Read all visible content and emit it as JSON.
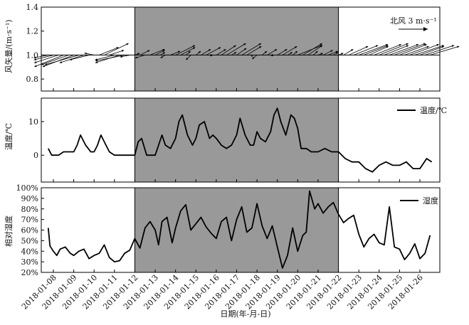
{
  "x_axis": {
    "label": "日期(年-月-日)",
    "ticks": [
      "2018-01-08",
      "2018-01-09",
      "2018-01-10",
      "2018-01-11",
      "2018-01-12",
      "2018-01-13",
      "2018-01-14",
      "2018-01-15",
      "2018-01-16",
      "2018-01-17",
      "2018-01-18",
      "2018-01-19",
      "2018-01-20",
      "2018-01-21",
      "2018-01-22",
      "2018-01-23",
      "2018-01-24",
      "2018-01-25",
      "2018-01-26"
    ]
  },
  "shade": {
    "start": "2018-01-12",
    "end": "2018-01-22",
    "color": "#999999"
  },
  "chart_data": [
    {
      "type": "line",
      "panel": "wind",
      "ylabel": "风矢量/(m·s⁻¹)",
      "ylim": [
        0.7,
        1.4
      ],
      "yticks": [
        0.8,
        1.0,
        1.2,
        1.4
      ],
      "ytick_labels": [
        "0.8",
        "1.0",
        "1.2",
        "1.4"
      ],
      "baseline": 1.0,
      "reference_arrow": {
        "label": "北风 3 m·s⁻¹",
        "speed": 3,
        "direction": "north"
      },
      "series": [
        {
          "x": [
            "2018-01-07 18:00",
            "2018-01-08 00:00",
            "2018-01-08 06:00",
            "2018-01-08 12:00",
            "2018-01-08 18:00",
            "2018-01-09 00:00",
            "2018-01-09 06:00",
            "2018-01-09 12:00",
            "2018-01-09 18:00",
            "2018-01-10 00:00",
            "2018-01-10 06:00",
            "2018-01-10 12:00",
            "2018-01-10 18:00",
            "2018-01-11 00:00",
            "2018-01-11 06:00",
            "2018-01-11 12:00",
            "2018-01-11 18:00",
            "2018-01-12 00:00",
            "2018-01-12 06:00",
            "2018-01-12 12:00",
            "2018-01-12 18:00",
            "2018-01-13 00:00",
            "2018-01-13 06:00",
            "2018-01-13 12:00",
            "2018-01-13 18:00",
            "2018-01-14 00:00",
            "2018-01-14 06:00",
            "2018-01-14 12:00",
            "2018-01-14 18:00",
            "2018-01-15 00:00",
            "2018-01-15 06:00",
            "2018-01-15 12:00",
            "2018-01-15 18:00",
            "2018-01-16 00:00",
            "2018-01-16 06:00",
            "2018-01-16 12:00",
            "2018-01-16 18:00",
            "2018-01-17 00:00",
            "2018-01-17 06:00",
            "2018-01-17 12:00",
            "2018-01-17 18:00",
            "2018-01-18 00:00",
            "2018-01-18 06:00",
            "2018-01-18 12:00",
            "2018-01-18 18:00",
            "2018-01-19 00:00",
            "2018-01-19 06:00",
            "2018-01-19 12:00",
            "2018-01-19 18:00",
            "2018-01-20 00:00",
            "2018-01-20 06:00",
            "2018-01-20 12:00",
            "2018-01-20 18:00",
            "2018-01-21 00:00",
            "2018-01-21 06:00",
            "2018-01-21 12:00",
            "2018-01-21 18:00",
            "2018-01-22 00:00",
            "2018-01-22 06:00",
            "2018-01-22 12:00",
            "2018-01-22 18:00",
            "2018-01-23 00:00",
            "2018-01-23 06:00",
            "2018-01-23 12:00",
            "2018-01-23 18:00",
            "2018-01-24 00:00",
            "2018-01-24 06:00",
            "2018-01-24 12:00",
            "2018-01-24 18:00",
            "2018-01-25 00:00",
            "2018-01-25 06:00",
            "2018-01-25 12:00",
            "2018-01-25 18:00",
            "2018-01-26 00:00",
            "2018-01-26 06:00",
            "2018-01-26 12:00"
          ],
          "u": [
            -1.5,
            -2.0,
            -2.5,
            -3.0,
            -2.8,
            -3.2,
            -3.5,
            -2.5,
            -2.0,
            -1.0,
            2.0,
            2.5,
            1.5,
            -2.0,
            -2.5,
            -3.0,
            -1.0,
            0.5,
            1.0,
            -1.0,
            1.5,
            1.0,
            0.5,
            -0.5,
            1.0,
            2.0,
            1.5,
            0.5,
            -0.5,
            0.5,
            1.0,
            1.5,
            0.0,
            1.0,
            1.5,
            2.0,
            0.5,
            1.0,
            2.0,
            1.5,
            0.0,
            -0.5,
            0.5,
            1.0,
            0.0,
            1.0,
            1.5,
            0.5,
            0.5,
            2.5,
            2.0,
            1.5,
            0.5,
            0.5,
            1.0,
            1.0,
            0.5,
            0.5,
            1.0,
            2.0,
            2.5,
            3.0,
            2.5,
            2.0,
            2.8,
            3.0,
            2.5,
            3.0,
            3.2,
            2.8,
            2.5,
            3.0,
            3.0,
            2.5,
            3.0,
            3.0
          ],
          "v": [
            -0.3,
            -0.5,
            -0.8,
            -1.2,
            -1.0,
            -1.2,
            -1.0,
            -0.8,
            -0.5,
            0.2,
            0.8,
            1.2,
            0.5,
            -0.5,
            -0.8,
            -0.6,
            -0.2,
            0.2,
            0.5,
            -0.3,
            0.6,
            0.5,
            0.3,
            -0.3,
            0.4,
            1.0,
            0.8,
            0.4,
            -0.5,
            0.4,
            0.6,
            0.8,
            0.1,
            0.6,
            1.0,
            1.2,
            0.3,
            0.7,
            1.2,
            0.9,
            -0.2,
            -0.4,
            0.4,
            0.6,
            0.1,
            0.6,
            0.9,
            0.3,
            0.4,
            1.0,
            1.2,
            1.0,
            0.4,
            0.2,
            0.5,
            0.4,
            0.3,
            0.2,
            0.6,
            0.9,
            1.0,
            1.1,
            1.0,
            0.9,
            1.1,
            1.2,
            1.0,
            1.1,
            1.2,
            1.1,
            0.9,
            1.1,
            1.0,
            0.9,
            1.0,
            0.9
          ]
        }
      ]
    },
    {
      "type": "line",
      "panel": "temperature",
      "ylabel": "温度/℃",
      "ylim": [
        -8,
        17
      ],
      "yticks": [
        0,
        10
      ],
      "ytick_labels": [
        "0",
        "10"
      ],
      "legend_position": "top-right",
      "series": [
        {
          "name": "温度/℃",
          "x": [
            "2018-01-07 18:00",
            "2018-01-07 22:00",
            "2018-01-08 00:00",
            "2018-01-08 06:00",
            "2018-01-08 12:00",
            "2018-01-08 18:00",
            "2018-01-09 00:00",
            "2018-01-09 04:00",
            "2018-01-09 08:00",
            "2018-01-09 14:00",
            "2018-01-09 20:00",
            "2018-01-10 00:00",
            "2018-01-10 04:00",
            "2018-01-10 08:00",
            "2018-01-10 14:00",
            "2018-01-10 18:00",
            "2018-01-11 00:00",
            "2018-01-11 12:00",
            "2018-01-11 18:00",
            "2018-01-12 00:00",
            "2018-01-12 04:00",
            "2018-01-12 08:00",
            "2018-01-12 14:00",
            "2018-01-12 18:00",
            "2018-01-13 00:00",
            "2018-01-13 04:00",
            "2018-01-13 08:00",
            "2018-01-13 12:00",
            "2018-01-13 18:00",
            "2018-01-14 00:00",
            "2018-01-14 04:00",
            "2018-01-14 08:00",
            "2018-01-14 14:00",
            "2018-01-14 20:00",
            "2018-01-15 00:00",
            "2018-01-15 04:00",
            "2018-01-15 10:00",
            "2018-01-15 16:00",
            "2018-01-15 20:00",
            "2018-01-16 00:00",
            "2018-01-16 06:00",
            "2018-01-16 12:00",
            "2018-01-16 18:00",
            "2018-01-17 00:00",
            "2018-01-17 04:00",
            "2018-01-17 10:00",
            "2018-01-17 16:00",
            "2018-01-17 20:00",
            "2018-01-18 00:00",
            "2018-01-18 04:00",
            "2018-01-18 10:00",
            "2018-01-18 16:00",
            "2018-01-18 20:00",
            "2018-01-19 00:00",
            "2018-01-19 04:00",
            "2018-01-19 10:00",
            "2018-01-19 16:00",
            "2018-01-19 20:00",
            "2018-01-20 00:00",
            "2018-01-20 04:00",
            "2018-01-20 10:00",
            "2018-01-20 16:00",
            "2018-01-21 00:00",
            "2018-01-21 08:00",
            "2018-01-21 16:00",
            "2018-01-22 00:00",
            "2018-01-22 08:00",
            "2018-01-22 16:00",
            "2018-01-23 00:00",
            "2018-01-23 08:00",
            "2018-01-23 16:00",
            "2018-01-24 00:00",
            "2018-01-24 08:00",
            "2018-01-24 16:00",
            "2018-01-25 00:00",
            "2018-01-25 08:00",
            "2018-01-25 16:00",
            "2018-01-26 00:00",
            "2018-01-26 08:00",
            "2018-01-26 14:00"
          ],
          "values": [
            2,
            0,
            0,
            0,
            1,
            1,
            1,
            3,
            6,
            3,
            1,
            1,
            3,
            6,
            3,
            1,
            0,
            0,
            0,
            0,
            4,
            5,
            0,
            0,
            0,
            3,
            6,
            3,
            2,
            5,
            10,
            12,
            6,
            3,
            5,
            9,
            10,
            5,
            6,
            5,
            3,
            2,
            3,
            6,
            11,
            6,
            3,
            3,
            7,
            5,
            4,
            7,
            12,
            14,
            10,
            6,
            12,
            11,
            8,
            2,
            2,
            1,
            1,
            2,
            1,
            1,
            -1,
            -2,
            -2,
            -4,
            -5,
            -3,
            -2,
            -3,
            -3,
            -2,
            -4,
            -4,
            -1,
            -2
          ]
        }
      ]
    },
    {
      "type": "line",
      "panel": "humidity",
      "ylabel": "相对湿度",
      "ylim": [
        20,
        100
      ],
      "yticks": [
        20,
        30,
        40,
        50,
        60,
        70,
        80,
        90,
        100
      ],
      "ytick_labels": [
        "20%",
        "30%",
        "40%",
        "50%",
        "60%",
        "70%",
        "80%",
        "90%",
        "100%"
      ],
      "legend_position": "top-right",
      "series": [
        {
          "name": "湿度",
          "x": [
            "2018-01-07 18:00",
            "2018-01-07 20:00",
            "2018-01-08 00:00",
            "2018-01-08 04:00",
            "2018-01-08 08:00",
            "2018-01-08 14:00",
            "2018-01-08 20:00",
            "2018-01-09 00:00",
            "2018-01-09 06:00",
            "2018-01-09 12:00",
            "2018-01-09 18:00",
            "2018-01-10 00:00",
            "2018-01-10 06:00",
            "2018-01-10 12:00",
            "2018-01-10 18:00",
            "2018-01-11 00:00",
            "2018-01-11 06:00",
            "2018-01-11 12:00",
            "2018-01-11 18:00",
            "2018-01-12 00:00",
            "2018-01-12 06:00",
            "2018-01-12 12:00",
            "2018-01-12 18:00",
            "2018-01-13 00:00",
            "2018-01-13 04:00",
            "2018-01-13 08:00",
            "2018-01-13 14:00",
            "2018-01-13 20:00",
            "2018-01-14 00:00",
            "2018-01-14 06:00",
            "2018-01-14 12:00",
            "2018-01-14 18:00",
            "2018-01-15 00:00",
            "2018-01-15 06:00",
            "2018-01-15 12:00",
            "2018-01-15 18:00",
            "2018-01-16 00:00",
            "2018-01-16 06:00",
            "2018-01-16 12:00",
            "2018-01-16 18:00",
            "2018-01-17 00:00",
            "2018-01-17 06:00",
            "2018-01-17 12:00",
            "2018-01-17 18:00",
            "2018-01-18 00:00",
            "2018-01-18 06:00",
            "2018-01-18 12:00",
            "2018-01-18 18:00",
            "2018-01-19 00:00",
            "2018-01-19 06:00",
            "2018-01-19 12:00",
            "2018-01-19 18:00",
            "2018-01-20 00:00",
            "2018-01-20 06:00",
            "2018-01-20 10:00",
            "2018-01-20 14:00",
            "2018-01-20 20:00",
            "2018-01-21 00:00",
            "2018-01-21 06:00",
            "2018-01-21 12:00",
            "2018-01-21 18:00",
            "2018-01-22 00:00",
            "2018-01-22 06:00",
            "2018-01-22 12:00",
            "2018-01-22 18:00",
            "2018-01-23 00:00",
            "2018-01-23 06:00",
            "2018-01-23 12:00",
            "2018-01-23 18:00",
            "2018-01-24 00:00",
            "2018-01-24 06:00",
            "2018-01-24 12:00",
            "2018-01-24 18:00",
            "2018-01-25 00:00",
            "2018-01-25 06:00",
            "2018-01-25 12:00",
            "2018-01-25 18:00",
            "2018-01-26 00:00",
            "2018-01-26 06:00",
            "2018-01-26 12:00"
          ],
          "values": [
            62,
            45,
            40,
            36,
            42,
            44,
            38,
            36,
            40,
            42,
            33,
            36,
            38,
            46,
            34,
            30,
            31,
            38,
            41,
            52,
            43,
            62,
            68,
            60,
            46,
            68,
            72,
            48,
            62,
            78,
            84,
            60,
            66,
            72,
            63,
            57,
            52,
            68,
            72,
            50,
            70,
            82,
            58,
            62,
            85,
            64,
            52,
            64,
            44,
            24,
            36,
            62,
            40,
            55,
            58,
            97,
            80,
            85,
            76,
            82,
            86,
            75,
            67,
            71,
            74,
            56,
            44,
            52,
            56,
            48,
            46,
            82,
            44,
            42,
            32,
            38,
            47,
            33,
            38,
            55
          ]
        }
      ]
    }
  ]
}
